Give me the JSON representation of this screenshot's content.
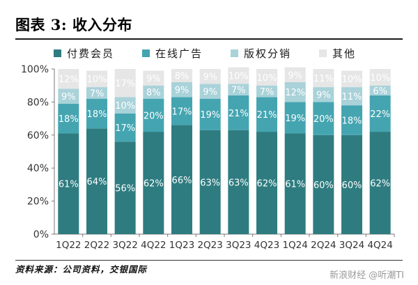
{
  "title": "图表 3: 收入分布",
  "source": "资料来源：公司资料，交银国际",
  "watermark": "新浪财经 @听潮TI",
  "colors": {
    "paid_members": "#2e7c80",
    "online_ads": "#44a5b1",
    "copyright": "#a9d2d9",
    "other": "#e6e6e6",
    "label_text": "#ffffff",
    "axis_text": "#333333"
  },
  "chart_data": {
    "type": "bar",
    "stacked": true,
    "categories": [
      "1Q22",
      "2Q22",
      "3Q22",
      "4Q22",
      "1Q23",
      "2Q23",
      "3Q23",
      "4Q23",
      "1Q24",
      "2Q24",
      "3Q24",
      "4Q24"
    ],
    "series": [
      {
        "name": "付费会员",
        "color_key": "paid_members",
        "values": [
          61,
          64,
          56,
          62,
          66,
          63,
          63,
          62,
          61,
          60,
          60,
          62
        ]
      },
      {
        "name": "在线广告",
        "color_key": "online_ads",
        "values": [
          18,
          18,
          17,
          20,
          17,
          19,
          21,
          21,
          19,
          20,
          18,
          22
        ]
      },
      {
        "name": "版权分销",
        "color_key": "copyright",
        "values": [
          9,
          7,
          10,
          8,
          9,
          9,
          7,
          7,
          12,
          9,
          11,
          6
        ]
      },
      {
        "name": "其他",
        "color_key": "other",
        "values": [
          12,
          10,
          17,
          9,
          8,
          9,
          10,
          10,
          9,
          11,
          10,
          10
        ]
      }
    ],
    "yticks": [
      "0%",
      "20%",
      "40%",
      "60%",
      "80%",
      "100%"
    ],
    "ylim": [
      0,
      100
    ],
    "unit": "%",
    "grid": false,
    "legend_position": "top"
  }
}
